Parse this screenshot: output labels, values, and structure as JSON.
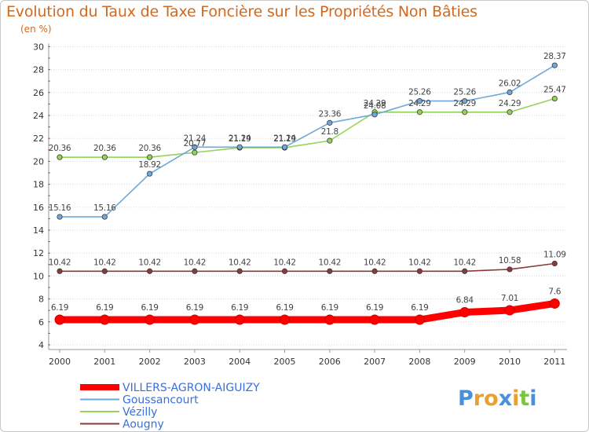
{
  "chart_data": {
    "type": "line",
    "title": "Evolution du Taux de Taxe Foncière sur les Propriétés Non Bâties",
    "unit_label": "(en %)",
    "x": [
      "2000",
      "2001",
      "2002",
      "2003",
      "2004",
      "2005",
      "2006",
      "2007",
      "2008",
      "2009",
      "2010",
      "2011"
    ],
    "ylim": [
      4,
      30
    ],
    "yticks": [
      4,
      6,
      8,
      10,
      12,
      14,
      16,
      18,
      20,
      22,
      24,
      26,
      28,
      30
    ],
    "grid": "horizontal dotted",
    "legend_position": "bottom-left",
    "series": [
      {
        "name": "VILLERS-AGRON-AIGUIZY",
        "color": "#ff0000",
        "values": [
          6.19,
          6.19,
          6.19,
          6.19,
          6.19,
          6.19,
          6.19,
          6.19,
          6.19,
          6.84,
          7.01,
          7.6
        ],
        "labels": [
          "6.19",
          "6.19",
          "6.19",
          "6.19",
          "6.19",
          "6.19",
          "6.19",
          "6.19",
          "6.19",
          "6.84",
          "7.01",
          "7.6"
        ]
      },
      {
        "name": "Goussancourt",
        "color": "#6fa8dc",
        "values": [
          15.16,
          15.16,
          18.92,
          21.24,
          21.24,
          21.24,
          23.36,
          24.08,
          25.26,
          25.26,
          26.02,
          28.37
        ],
        "labels": [
          "15.16",
          "15.16",
          "18.92",
          "21.24",
          "21.24",
          "21.24",
          "23.36",
          "24.08",
          "25.26",
          "25.26",
          "26.02",
          "28.37"
        ]
      },
      {
        "name": "Vézilly",
        "color": "#93d35a",
        "values": [
          20.36,
          20.36,
          20.36,
          20.77,
          21.19,
          21.19,
          21.8,
          24.29,
          24.29,
          24.29,
          24.29,
          25.47
        ],
        "labels": [
          "20.36",
          "20.36",
          "20.36",
          "20.77",
          "21.19",
          "21.19",
          "21.8",
          "24.29",
          "24.29",
          "24.29",
          "24.29",
          "25.47"
        ]
      },
      {
        "name": "Aougny",
        "color": "#8b3a3a",
        "values": [
          10.42,
          10.42,
          10.42,
          10.42,
          10.42,
          10.42,
          10.42,
          10.42,
          10.42,
          10.42,
          10.58,
          11.09
        ],
        "labels": [
          "10.42",
          "10.42",
          "10.42",
          "10.42",
          "10.42",
          "10.42",
          "10.42",
          "10.42",
          "10.42",
          "10.42",
          "10.58",
          "11.09"
        ]
      }
    ]
  },
  "logo": {
    "letters": [
      "P",
      "r",
      "o",
      "x",
      "i",
      "t",
      "i"
    ],
    "colors": [
      "#4a90d9",
      "#e8a030",
      "#e8a030",
      "#4a90d9",
      "#e8a030",
      "#7cc243",
      "#4a90d9"
    ]
  }
}
